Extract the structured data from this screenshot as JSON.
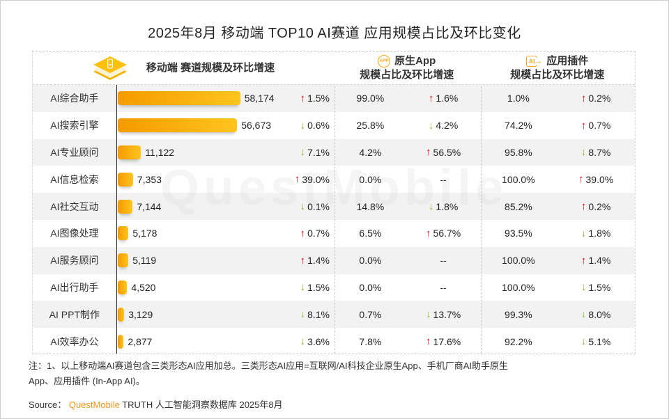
{
  "title": "2025年8月 移动端 TOP10 AI赛道 应用规模占比及环比变化",
  "header": {
    "sections": [
      {
        "icon": "mobile-diamond-icon",
        "line1": "移动端 赛道规模及环比增速",
        "line2": ""
      },
      {
        "icon": "native-app-icon",
        "badge": "APP",
        "line1": "原生App",
        "line2": "规模占比及环比增速"
      },
      {
        "icon": "app-plugin-icon",
        "badge": "AI",
        "line1": "应用插件",
        "line2": "规模占比及环比增速"
      }
    ]
  },
  "icons": {
    "up": "↑",
    "down": "↓",
    "plugin_arrow": "→"
  },
  "chart_data": {
    "type": "bar",
    "title": "2025年8月 移动端 TOP10 AI赛道 应用规模占比及环比变化",
    "orientation": "horizontal",
    "xlim": [
      0,
      58174
    ],
    "grid": false,
    "columns": [
      "赛道",
      "赛道规模",
      "规模环比增速",
      "原生App规模占比",
      "原生App环比增速",
      "应用插件规模占比",
      "应用插件环比增速"
    ],
    "rows": [
      {
        "label": "AI综合助手",
        "scale": 58174,
        "scale_display": "58,174",
        "scale_change": "1.5%",
        "scale_dir": "up",
        "app_share": "99.0%",
        "app_change": "1.6%",
        "app_dir": "up",
        "plugin_share": "1.0%",
        "plugin_change": "0.2%",
        "plugin_dir": "up"
      },
      {
        "label": "AI搜索引擎",
        "scale": 56673,
        "scale_display": "56,673",
        "scale_change": "0.6%",
        "scale_dir": "down",
        "app_share": "25.8%",
        "app_change": "4.2%",
        "app_dir": "down",
        "plugin_share": "74.2%",
        "plugin_change": "0.7%",
        "plugin_dir": "up"
      },
      {
        "label": "AI专业顾问",
        "scale": 11122,
        "scale_display": "11,122",
        "scale_change": "7.1%",
        "scale_dir": "down",
        "app_share": "4.2%",
        "app_change": "56.5%",
        "app_dir": "up",
        "plugin_share": "95.8%",
        "plugin_change": "8.7%",
        "plugin_dir": "down"
      },
      {
        "label": "AI信息检索",
        "scale": 7353,
        "scale_display": "7,353",
        "scale_change": "39.0%",
        "scale_dir": "up",
        "app_share": "0.0%",
        "app_change": "--",
        "app_dir": "none",
        "plugin_share": "100.0%",
        "plugin_change": "39.0%",
        "plugin_dir": "up"
      },
      {
        "label": "AI社交互动",
        "scale": 7144,
        "scale_display": "7,144",
        "scale_change": "0.1%",
        "scale_dir": "down",
        "app_share": "14.8%",
        "app_change": "1.8%",
        "app_dir": "down",
        "plugin_share": "85.2%",
        "plugin_change": "0.2%",
        "plugin_dir": "up"
      },
      {
        "label": "AI图像处理",
        "scale": 5178,
        "scale_display": "5,178",
        "scale_change": "0.7%",
        "scale_dir": "up",
        "app_share": "6.5%",
        "app_change": "56.7%",
        "app_dir": "up",
        "plugin_share": "93.5%",
        "plugin_change": "1.8%",
        "plugin_dir": "down"
      },
      {
        "label": "AI服务顾问",
        "scale": 5119,
        "scale_display": "5,119",
        "scale_change": "1.4%",
        "scale_dir": "up",
        "app_share": "0.0%",
        "app_change": "--",
        "app_dir": "none",
        "plugin_share": "100.0%",
        "plugin_change": "1.4%",
        "plugin_dir": "up"
      },
      {
        "label": "AI出行助手",
        "scale": 4520,
        "scale_display": "4,520",
        "scale_change": "1.5%",
        "scale_dir": "down",
        "app_share": "0.0%",
        "app_change": "--",
        "app_dir": "none",
        "plugin_share": "100.0%",
        "plugin_change": "1.5%",
        "plugin_dir": "down"
      },
      {
        "label": "AI PPT制作",
        "scale": 3129,
        "scale_display": "3,129",
        "scale_change": "8.1%",
        "scale_dir": "down",
        "app_share": "0.7%",
        "app_change": "13.7%",
        "app_dir": "down",
        "plugin_share": "99.3%",
        "plugin_change": "8.0%",
        "plugin_dir": "down"
      },
      {
        "label": "AI效率办公",
        "scale": 2877,
        "scale_display": "2,877",
        "scale_change": "3.6%",
        "scale_dir": "down",
        "app_share": "7.8%",
        "app_change": "17.6%",
        "app_dir": "up",
        "plugin_share": "92.2%",
        "plugin_change": "5.1%",
        "plugin_dir": "down"
      }
    ]
  },
  "note_lines": [
    "注：1、以上移动端AI赛道包含三类形态AI应用加总。三类形态AI应用=互联网/AI科技企业原生App、手机厂商AI助手原生",
    "App、应用插件 (In-App AI)。"
  ],
  "source": {
    "prefix": "Source：",
    "brand": "QuestMobile",
    "rest": " TRUTH 人工智能洞察数据库 2025年8月"
  },
  "watermark": "QuestMobile",
  "colors": {
    "up_red": "#e60012",
    "down_green": "#7fbe26",
    "bar_gradient_start": "#f59a00",
    "bar_gradient_end": "#ffc41d",
    "brand_orange": "#f7941d",
    "stripe_gray": "#f2f2f2"
  }
}
